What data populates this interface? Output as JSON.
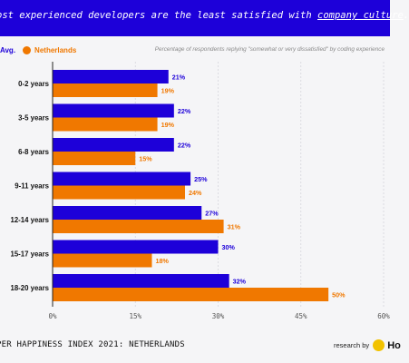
{
  "banner": {
    "text_before": "ost experienced developers are the least satisfied with ",
    "highlight": "company culture",
    "text_after": "."
  },
  "legend": {
    "avg_label": "Avg.",
    "nl_label": "Netherlands"
  },
  "subtitle": "Percentage of respondents replying \"somewhat or very dissatisfied\" by coding experience",
  "colors": {
    "avg": "#1d00d9",
    "nl": "#f07800",
    "banner": "#1d00d9"
  },
  "footer": {
    "left": "PER HAPPINESS INDEX 2021: NETHERLANDS",
    "research_by": "research by",
    "logo_icon": "honeypot-bee-icon",
    "logo_text": "Ho"
  },
  "chart_data": {
    "type": "bar",
    "orientation": "horizontal",
    "categories": [
      "0-2 years",
      "3-5 years",
      "6-8 years",
      "9-11 years",
      "12-14 years",
      "15-17 years",
      "18-20 years"
    ],
    "series": [
      {
        "name": "Avg.",
        "values": [
          21,
          22,
          22,
          25,
          27,
          30,
          32
        ],
        "labels": [
          "21%",
          "22%",
          "22%",
          "25%",
          "27%",
          "30%",
          "32%"
        ]
      },
      {
        "name": "Netherlands",
        "values": [
          19,
          19,
          15,
          24,
          31,
          18,
          50
        ],
        "labels": [
          "19%",
          "19%",
          "15%",
          "24%",
          "31%",
          "18%",
          "50%"
        ]
      }
    ],
    "xlim": [
      0,
      60
    ],
    "xticks": [
      0,
      15,
      30,
      45,
      60
    ],
    "xtick_labels": [
      "0%",
      "15%",
      "30%",
      "45%",
      "60%"
    ],
    "grid": true
  }
}
